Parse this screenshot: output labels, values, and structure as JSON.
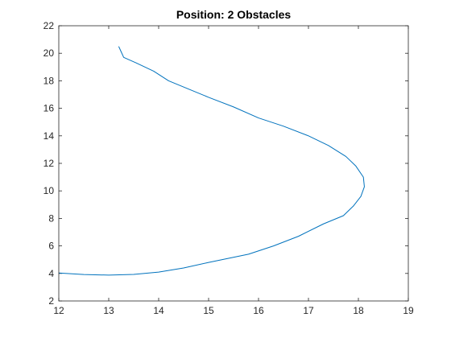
{
  "chart_data": {
    "type": "line",
    "title": "Position: 2 Obstacles",
    "xlabel": "",
    "ylabel": "",
    "xlim": [
      12,
      19
    ],
    "ylim": [
      2,
      22
    ],
    "xticks": [
      12,
      13,
      14,
      15,
      16,
      17,
      18,
      19
    ],
    "yticks": [
      2,
      4,
      6,
      8,
      10,
      12,
      14,
      16,
      18,
      20,
      22
    ],
    "grid": false,
    "box": true,
    "line_color": "#0072BD",
    "series": [
      {
        "x": [
          13.2,
          13.25,
          13.3,
          13.55,
          13.9,
          14.2,
          14.6,
          15.0,
          15.5,
          16.0,
          16.5,
          17.0,
          17.4,
          17.75,
          17.95,
          18.1,
          18.12,
          18.05,
          17.9,
          17.7,
          17.3,
          16.8,
          16.3,
          15.8,
          15.0,
          14.5,
          14.0,
          13.5,
          13.0,
          12.5,
          12.0
        ],
        "y": [
          20.5,
          20.1,
          19.7,
          19.3,
          18.7,
          18.0,
          17.4,
          16.8,
          16.1,
          15.3,
          14.7,
          14.0,
          13.3,
          12.5,
          11.8,
          11.0,
          10.3,
          9.6,
          8.9,
          8.2,
          7.6,
          6.7,
          6.0,
          5.4,
          4.8,
          4.4,
          4.1,
          3.93,
          3.88,
          3.92,
          4.03
        ]
      }
    ]
  }
}
